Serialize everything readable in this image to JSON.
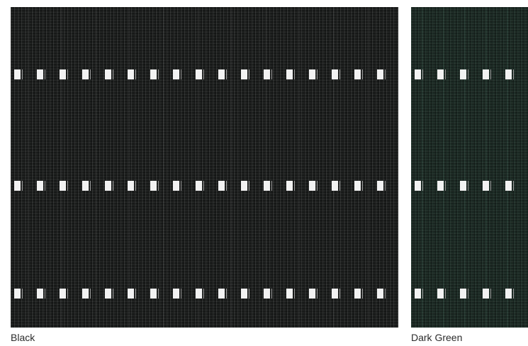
{
  "swatches": [
    {
      "label": "Black",
      "color": "#1b1d1c"
    },
    {
      "label": "Dark Green",
      "color": "#1c2a24"
    }
  ]
}
